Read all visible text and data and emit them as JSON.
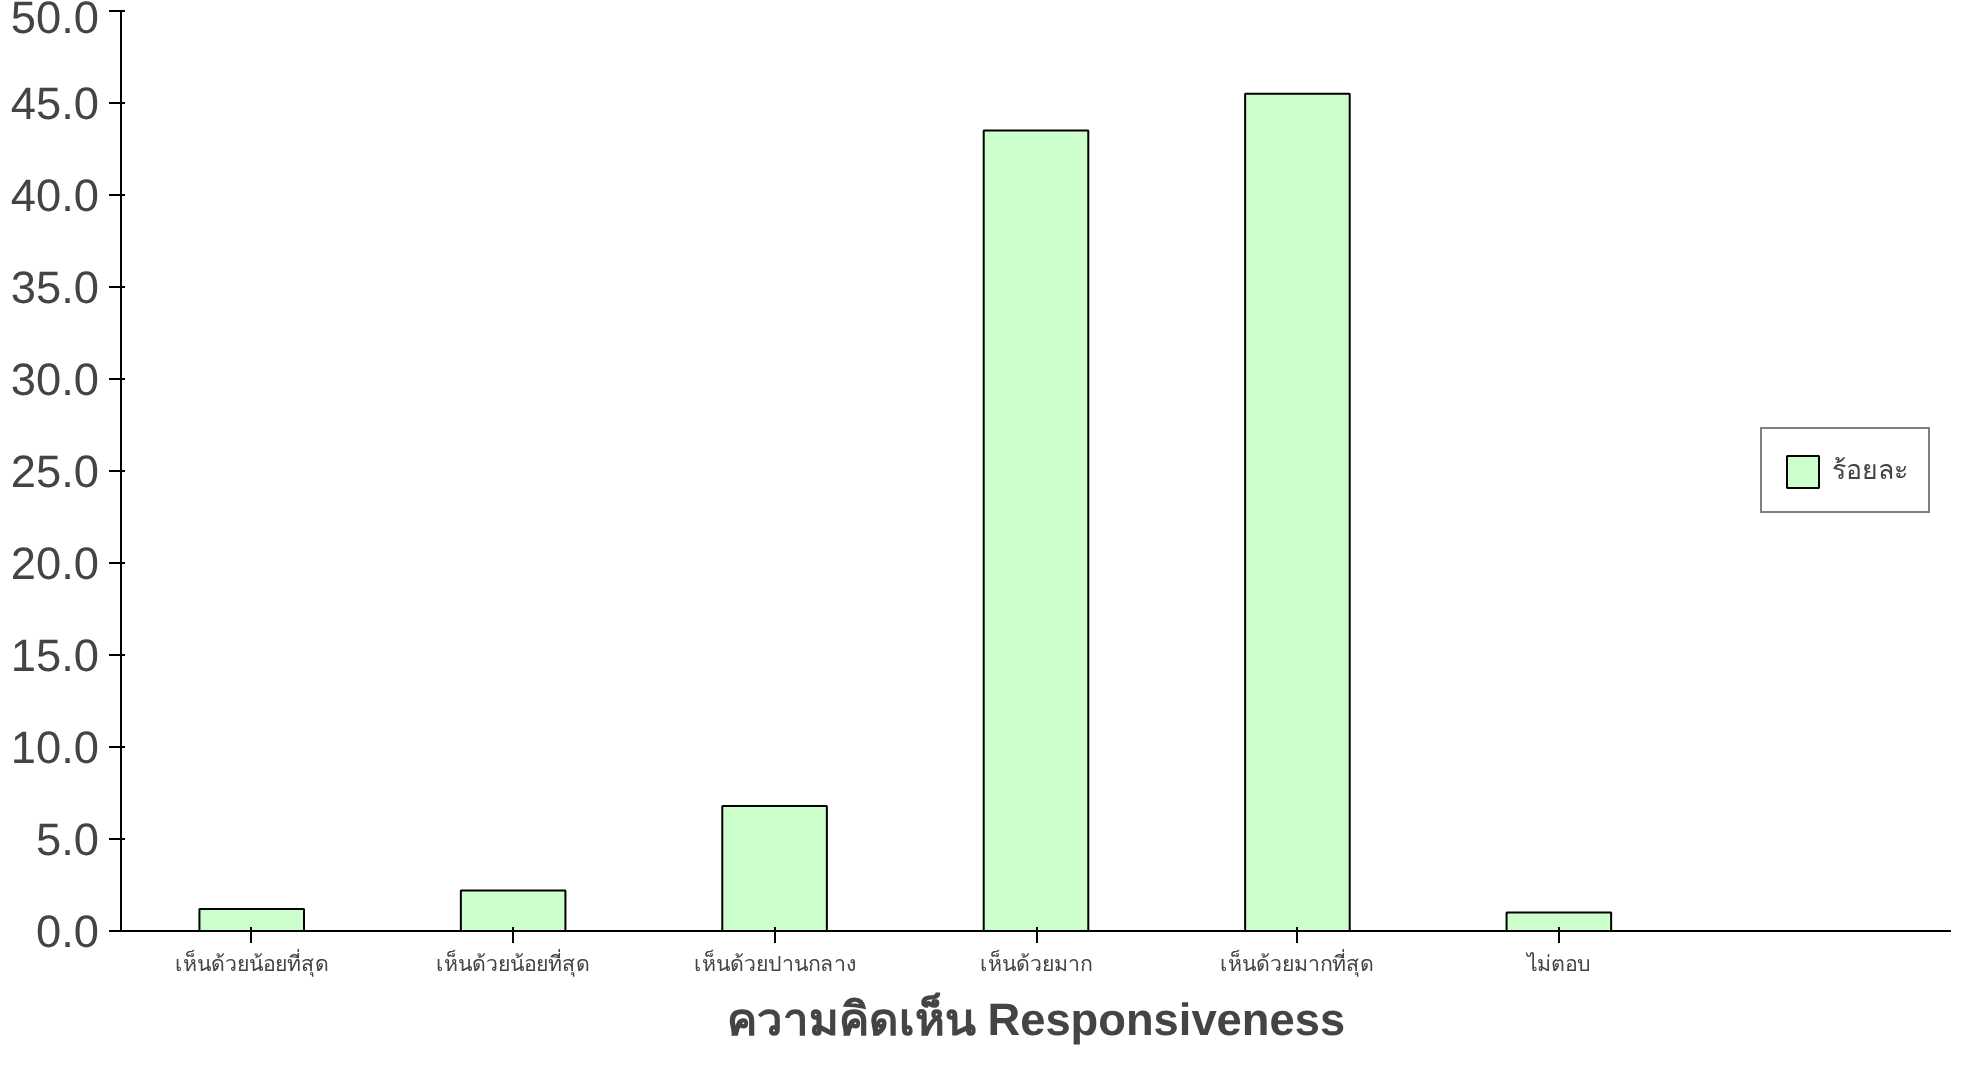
{
  "chart_data": {
    "type": "bar",
    "xlabel": "ความคิดเห็น Responsiveness",
    "categories": [
      "เห็นด้วยน้อยที่สุด",
      "เห็นด้วยน้อยที่สุด",
      "เห็นด้วยปานกลาง",
      "เห็นด้วยมาก",
      "เห็นด้วยมากที่สุด",
      "ไม่ตอบ"
    ],
    "series": [
      {
        "name": "ร้อยละ",
        "color": "#ccffcc",
        "values": [
          1.2,
          2.2,
          6.8,
          43.5,
          45.5,
          1.0
        ]
      }
    ],
    "ylim": [
      0,
      50
    ],
    "yticks": [
      {
        "value": 0,
        "label": "0.0"
      },
      {
        "value": 5,
        "label": "5.0"
      },
      {
        "value": 10,
        "label": "10.0"
      },
      {
        "value": 15,
        "label": "15.0"
      },
      {
        "value": 20,
        "label": "20.0"
      },
      {
        "value": 25,
        "label": "25.0"
      },
      {
        "value": 30,
        "label": "30.0"
      },
      {
        "value": 35,
        "label": "35.0"
      },
      {
        "value": 40,
        "label": "40.0"
      },
      {
        "value": 45,
        "label": "45.0"
      },
      {
        "value": 50,
        "label": "50.0"
      }
    ],
    "grid": false,
    "legend": "right"
  }
}
